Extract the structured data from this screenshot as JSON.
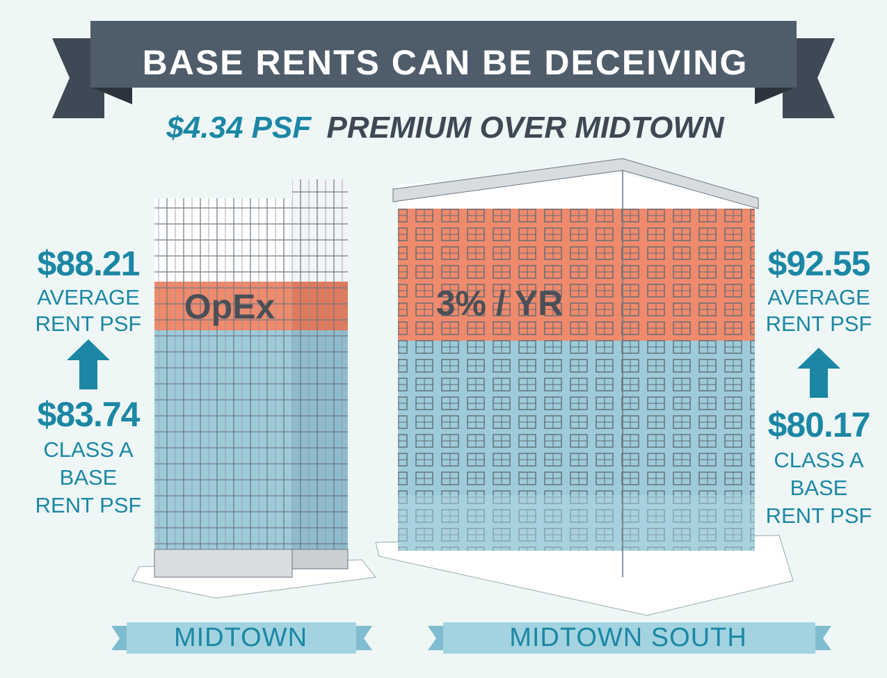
{
  "header": {
    "title": "BASE RENTS CAN BE DECEIVING",
    "subtitle_highlight": "$4.34 PSF",
    "subtitle": "PREMIUM OVER MIDTOWN"
  },
  "buildings": [
    {
      "name": "MIDTOWN",
      "band_label": "OpEx",
      "average_rent": "$88.21",
      "average_label": [
        "AVERAGE",
        "RENT PSF"
      ],
      "base_rent": "$83.74",
      "base_label": [
        "CLASS A",
        "BASE",
        "RENT PSF"
      ]
    },
    {
      "name": "MIDTOWN SOUTH",
      "band_label": "3% / YR",
      "average_rent": "$92.55",
      "average_label": [
        "AVERAGE",
        "RENT PSF"
      ],
      "base_rent": "$80.17",
      "base_label": [
        "CLASS A",
        "BASE",
        "RENT PSF"
      ]
    }
  ]
}
